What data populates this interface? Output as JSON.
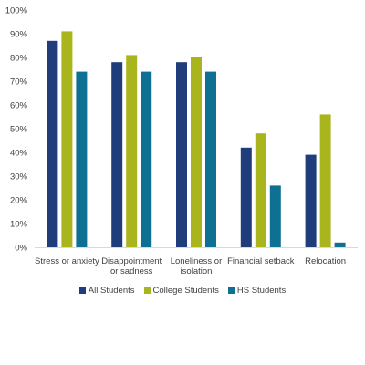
{
  "chart_data": {
    "type": "bar",
    "categories": [
      [
        "Stress or anxiety"
      ],
      [
        "Disappointment",
        "or sadness"
      ],
      [
        "Loneliness or",
        "isolation"
      ],
      [
        "Financial setback"
      ],
      [
        "Relocation"
      ]
    ],
    "series": [
      {
        "name": "All Students",
        "color": "#1f3d7a",
        "values": [
          87,
          78,
          78,
          42,
          39
        ]
      },
      {
        "name": "College Students",
        "color": "#a9b51c",
        "values": [
          91,
          81,
          80,
          48,
          56
        ]
      },
      {
        "name": "HS Students",
        "color": "#0e7194",
        "values": [
          74,
          74,
          74,
          26,
          2
        ]
      }
    ],
    "ylim": [
      0,
      100
    ],
    "yticks": [
      "0%",
      "10%",
      "20%",
      "30%",
      "40%",
      "50%",
      "60%",
      "70%",
      "80%",
      "90%",
      "100%"
    ],
    "grid": false,
    "legend_position": "bottom"
  }
}
